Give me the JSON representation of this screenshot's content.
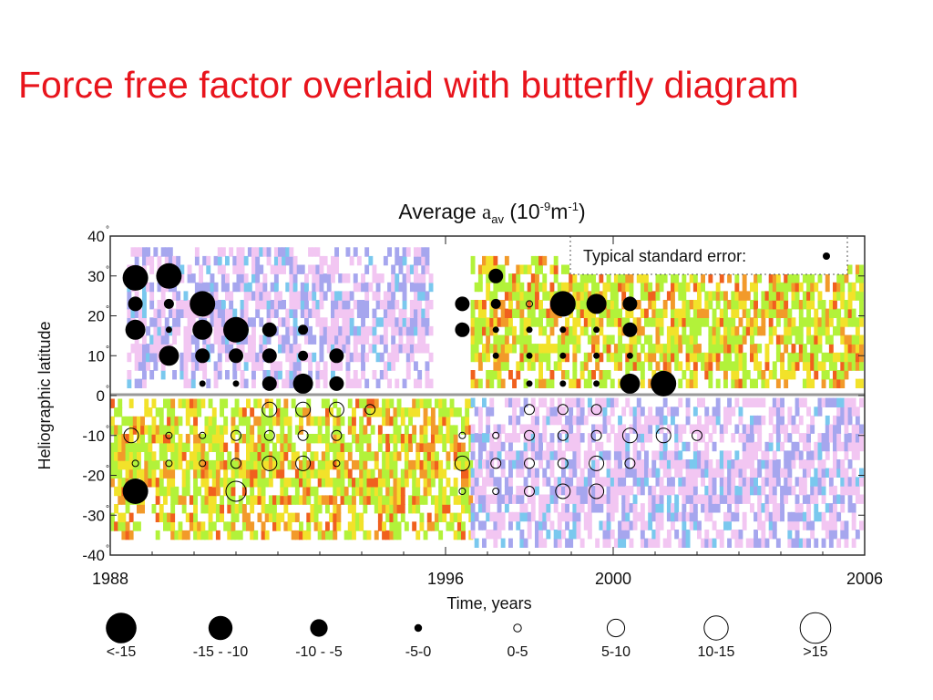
{
  "slide": {
    "title": "Force free factor overlaid with butterfly diagram"
  },
  "chart_data": {
    "type": "scatter",
    "title": "Average",
    "title_symbol": "a",
    "title_subscript": "av",
    "title_units_prefix": "(10",
    "title_units_exp1": "-9",
    "title_units_mid": "m",
    "title_units_exp2": "-1",
    "title_units_suffix": ")",
    "xlabel": "Time, years",
    "ylabel": "Heliographic latitude",
    "xlim": [
      1988,
      2006
    ],
    "ylim": [
      -40,
      40
    ],
    "x_ticks": [
      {
        "value": 1988,
        "label": "1988"
      },
      {
        "value": 1996,
        "label": "1996"
      },
      {
        "value": 2000,
        "label": "2000"
      },
      {
        "value": 2006,
        "label": "2006"
      }
    ],
    "y_ticks": [
      {
        "value": 40,
        "label": "40"
      },
      {
        "value": 30,
        "label": "30"
      },
      {
        "value": 20,
        "label": "20"
      },
      {
        "value": 10,
        "label": "10"
      },
      {
        "value": 0,
        "label": "0"
      },
      {
        "value": -10,
        "label": "-10"
      },
      {
        "value": -20,
        "label": "-20"
      },
      {
        "value": -30,
        "label": "-30"
      },
      {
        "value": -40,
        "label": "-40"
      }
    ],
    "degree_symbol": "°",
    "equator_line": true,
    "annotation": {
      "text": "Typical standard error:",
      "placement": "top-right"
    },
    "size_legend": [
      {
        "label": "<-15",
        "filled": true,
        "size": 8
      },
      {
        "label": "-15 - -10",
        "filled": true,
        "size": 7
      },
      {
        "label": "-10 - -5",
        "filled": true,
        "size": 6
      },
      {
        "label": "-5-0",
        "filled": true,
        "size": 4
      },
      {
        "label": "0-5",
        "filled": false,
        "size": 4
      },
      {
        "label": "5-10",
        "filled": false,
        "size": 6
      },
      {
        "label": "10-15",
        "filled": false,
        "size": 7
      },
      {
        "label": ">15",
        "filled": false,
        "size": 8
      }
    ],
    "background_colors": {
      "magenta_low": "#f2c6f2",
      "blue_low": "#a6a6ee",
      "cyan_low": "#7ac8ee",
      "green_high": "#b2f23a",
      "yellow_high": "#f2e22a",
      "orange_high": "#f29a2a",
      "red_high": "#f0601e"
    },
    "points": [
      {
        "x": 1988.6,
        "y": 29.5,
        "cls": 8
      },
      {
        "x": 1988.6,
        "y": 23,
        "cls": 6
      },
      {
        "x": 1988.6,
        "y": 16.5,
        "cls": 7
      },
      {
        "x": 1988.5,
        "y": -10,
        "cls": 6
      },
      {
        "x": 1988.6,
        "y": -17,
        "cls": 4
      },
      {
        "x": 1988.6,
        "y": -24,
        "cls": 8
      },
      {
        "x": 1989.4,
        "y": 30,
        "cls": 8
      },
      {
        "x": 1989.4,
        "y": 23,
        "cls": 5
      },
      {
        "x": 1989.4,
        "y": 16.5,
        "cls": 4
      },
      {
        "x": 1989.4,
        "y": 10,
        "cls": 7
      },
      {
        "x": 1989.4,
        "y": -10,
        "cls": 4
      },
      {
        "x": 1989.4,
        "y": -17,
        "cls": 4
      },
      {
        "x": 1990.2,
        "y": 23,
        "cls": 8
      },
      {
        "x": 1990.2,
        "y": 16.5,
        "cls": 7
      },
      {
        "x": 1990.2,
        "y": 10,
        "cls": 6
      },
      {
        "x": 1990.2,
        "y": 3,
        "cls": 4
      },
      {
        "x": 1990.2,
        "y": -10,
        "cls": 4
      },
      {
        "x": 1990.2,
        "y": -17,
        "cls": 4
      },
      {
        "x": 1991.0,
        "y": 16.5,
        "cls": 8
      },
      {
        "x": 1991.0,
        "y": 10,
        "cls": 6
      },
      {
        "x": 1991.0,
        "y": 3,
        "cls": 4
      },
      {
        "x": 1991.0,
        "y": -10,
        "cls": 5
      },
      {
        "x": 1991.0,
        "y": -17,
        "cls": 5
      },
      {
        "x": 1991.0,
        "y": -24,
        "cls": 7
      },
      {
        "x": 1991.8,
        "y": 16.5,
        "cls": 6
      },
      {
        "x": 1991.8,
        "y": 10,
        "cls": 6
      },
      {
        "x": 1991.8,
        "y": 3,
        "cls": 6
      },
      {
        "x": 1991.8,
        "y": -3.5,
        "cls": 6
      },
      {
        "x": 1991.8,
        "y": -10,
        "cls": 5
      },
      {
        "x": 1991.8,
        "y": -17,
        "cls": 6
      },
      {
        "x": 1992.6,
        "y": 16.5,
        "cls": 5
      },
      {
        "x": 1992.6,
        "y": 10,
        "cls": 5
      },
      {
        "x": 1992.6,
        "y": 3,
        "cls": 7
      },
      {
        "x": 1992.6,
        "y": -3.5,
        "cls": 6
      },
      {
        "x": 1992.6,
        "y": -10,
        "cls": 5
      },
      {
        "x": 1992.6,
        "y": -17,
        "cls": 6
      },
      {
        "x": 1993.4,
        "y": 10,
        "cls": 6
      },
      {
        "x": 1993.4,
        "y": 3,
        "cls": 6
      },
      {
        "x": 1993.4,
        "y": -3.5,
        "cls": 6
      },
      {
        "x": 1993.4,
        "y": -10,
        "cls": 5
      },
      {
        "x": 1993.4,
        "y": -17,
        "cls": 4
      },
      {
        "x": 1994.2,
        "y": -3.5,
        "cls": 5
      },
      {
        "x": 1996.4,
        "y": 23,
        "cls": 6
      },
      {
        "x": 1996.4,
        "y": 16.5,
        "cls": 6
      },
      {
        "x": 1996.4,
        "y": -10,
        "cls": 4
      },
      {
        "x": 1996.4,
        "y": -17,
        "cls": 6
      },
      {
        "x": 1996.4,
        "y": -24,
        "cls": 4
      },
      {
        "x": 1997.2,
        "y": 30,
        "cls": 6
      },
      {
        "x": 1997.2,
        "y": 23,
        "cls": 5
      },
      {
        "x": 1997.2,
        "y": 16.5,
        "cls": 4
      },
      {
        "x": 1997.2,
        "y": 10,
        "cls": 4
      },
      {
        "x": 1997.2,
        "y": -10,
        "cls": 4
      },
      {
        "x": 1997.2,
        "y": -17,
        "cls": 5
      },
      {
        "x": 1997.2,
        "y": -24,
        "cls": 4
      },
      {
        "x": 1998.0,
        "y": 23,
        "cls": 4
      },
      {
        "x": 1998.0,
        "y": 16.5,
        "cls": 4
      },
      {
        "x": 1998.0,
        "y": 10,
        "cls": 4
      },
      {
        "x": 1998.0,
        "y": 3,
        "cls": 4
      },
      {
        "x": 1998.0,
        "y": -3.5,
        "cls": 5
      },
      {
        "x": 1998.0,
        "y": -10,
        "cls": 5
      },
      {
        "x": 1998.0,
        "y": -17,
        "cls": 5
      },
      {
        "x": 1998.0,
        "y": -24,
        "cls": 5
      },
      {
        "x": 1998.8,
        "y": 23,
        "cls": 8
      },
      {
        "x": 1998.8,
        "y": 16.5,
        "cls": 4
      },
      {
        "x": 1998.8,
        "y": 10,
        "cls": 4
      },
      {
        "x": 1998.8,
        "y": 3,
        "cls": 4
      },
      {
        "x": 1998.8,
        "y": -3.5,
        "cls": 5
      },
      {
        "x": 1998.8,
        "y": -10,
        "cls": 5
      },
      {
        "x": 1998.8,
        "y": -17,
        "cls": 5
      },
      {
        "x": 1998.8,
        "y": -24,
        "cls": 6
      },
      {
        "x": 1999.6,
        "y": 23,
        "cls": 7
      },
      {
        "x": 1999.6,
        "y": 16.5,
        "cls": 4
      },
      {
        "x": 1999.6,
        "y": 10,
        "cls": 4
      },
      {
        "x": 1999.6,
        "y": 3,
        "cls": 4
      },
      {
        "x": 1999.6,
        "y": -3.5,
        "cls": 5
      },
      {
        "x": 1999.6,
        "y": -10,
        "cls": 5
      },
      {
        "x": 1999.6,
        "y": -17,
        "cls": 6
      },
      {
        "x": 1999.6,
        "y": -24,
        "cls": 6
      },
      {
        "x": 2000.4,
        "y": 23,
        "cls": 6
      },
      {
        "x": 2000.4,
        "y": 16.5,
        "cls": 6
      },
      {
        "x": 2000.4,
        "y": 10,
        "cls": 4
      },
      {
        "x": 2000.4,
        "y": 3,
        "cls": 7
      },
      {
        "x": 2000.4,
        "y": -10,
        "cls": 6
      },
      {
        "x": 2000.4,
        "y": -17,
        "cls": 5
      },
      {
        "x": 2001.2,
        "y": 3,
        "cls": 8
      },
      {
        "x": 2001.2,
        "y": -10,
        "cls": 6
      },
      {
        "x": 2002.0,
        "y": -10,
        "cls": 5
      }
    ]
  }
}
